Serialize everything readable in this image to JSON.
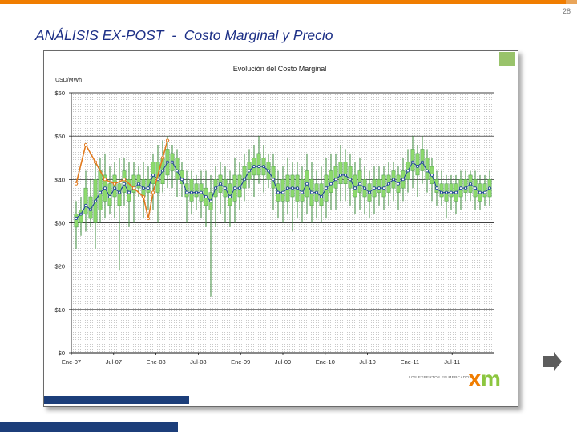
{
  "page": {
    "number": "28",
    "title": "ANÁLISIS EX-POST  -  Costo Marginal y Precio"
  },
  "logo": {
    "tagline": "LOS EXPERTOS EN MERCADOS",
    "mark": "xm",
    "colors": {
      "x": "#f07d00",
      "m": "#8cc63f"
    }
  },
  "icons": {
    "next": "right-arrow-icon"
  },
  "chart_data": {
    "type": "candlestick",
    "title": "Evolución del Costo Marginal",
    "ylabel": "USD/MWh",
    "ylim": [
      0,
      60
    ],
    "yticks": [
      "$0",
      "$10",
      "$20",
      "$30",
      "$40",
      "$50",
      "$60"
    ],
    "xticks": [
      "Ene-07",
      "Jul-07",
      "Ene-08",
      "Jul-08",
      "Ene-09",
      "Jul-09",
      "Ene-10",
      "Jul-10",
      "Ene-11",
      "Jul-11"
    ],
    "grid": true,
    "colors": {
      "box": "#8cd96c",
      "whisker": "#3e8e3e",
      "mean": "#1d3c9e",
      "price": "#e27a1e"
    },
    "candles": [
      {
        "o": 29,
        "c": 32,
        "h": 35,
        "l": 24
      },
      {
        "o": 30,
        "c": 33,
        "h": 36,
        "l": 27
      },
      {
        "o": 32,
        "c": 38,
        "h": 42,
        "l": 28
      },
      {
        "o": 31,
        "c": 36,
        "h": 40,
        "l": 29
      },
      {
        "o": 30,
        "c": 40,
        "h": 44,
        "l": 24
      },
      {
        "o": 33,
        "c": 42,
        "h": 45,
        "l": 30
      },
      {
        "o": 35,
        "c": 41,
        "h": 46,
        "l": 31
      },
      {
        "o": 34,
        "c": 39,
        "h": 43,
        "l": 32
      },
      {
        "o": 36,
        "c": 41,
        "h": 44,
        "l": 31
      },
      {
        "o": 34,
        "c": 39,
        "h": 45,
        "l": 19
      },
      {
        "o": 37,
        "c": 42,
        "h": 45,
        "l": 34
      },
      {
        "o": 35,
        "c": 40,
        "h": 44,
        "l": 29
      },
      {
        "o": 37,
        "c": 41,
        "h": 44,
        "l": 30
      },
      {
        "o": 38,
        "c": 41,
        "h": 43,
        "l": 36
      },
      {
        "o": 36,
        "c": 40,
        "h": 44,
        "l": 31
      },
      {
        "o": 37,
        "c": 40,
        "h": 43,
        "l": 33
      },
      {
        "o": 39,
        "c": 44,
        "h": 46,
        "l": 33
      },
      {
        "o": 37,
        "c": 44,
        "h": 48,
        "l": 30
      },
      {
        "o": 39,
        "c": 45,
        "h": 49,
        "l": 37
      },
      {
        "o": 41,
        "c": 47,
        "h": 50,
        "l": 38
      },
      {
        "o": 42,
        "c": 46,
        "h": 48,
        "l": 38
      },
      {
        "o": 40,
        "c": 45,
        "h": 47,
        "l": 36
      },
      {
        "o": 39,
        "c": 42,
        "h": 44,
        "l": 36
      },
      {
        "o": 36,
        "c": 39,
        "h": 42,
        "l": 30
      },
      {
        "o": 35,
        "c": 40,
        "h": 42,
        "l": 32
      },
      {
        "o": 36,
        "c": 39,
        "h": 41,
        "l": 33
      },
      {
        "o": 35,
        "c": 39,
        "h": 42,
        "l": 31
      },
      {
        "o": 34,
        "c": 38,
        "h": 42,
        "l": 29
      },
      {
        "o": 33,
        "c": 37,
        "h": 41,
        "l": 13
      },
      {
        "o": 36,
        "c": 40,
        "h": 43,
        "l": 29
      },
      {
        "o": 37,
        "c": 41,
        "h": 44,
        "l": 32
      },
      {
        "o": 36,
        "c": 40,
        "h": 43,
        "l": 30
      },
      {
        "o": 34,
        "c": 39,
        "h": 42,
        "l": 29
      },
      {
        "o": 35,
        "c": 41,
        "h": 45,
        "l": 30
      },
      {
        "o": 36,
        "c": 41,
        "h": 44,
        "l": 33
      },
      {
        "o": 38,
        "c": 43,
        "h": 46,
        "l": 35
      },
      {
        "o": 40,
        "c": 44,
        "h": 47,
        "l": 38
      },
      {
        "o": 41,
        "c": 45,
        "h": 48,
        "l": 36
      },
      {
        "o": 41,
        "c": 46,
        "h": 50,
        "l": 39
      },
      {
        "o": 41,
        "c": 45,
        "h": 48,
        "l": 37
      },
      {
        "o": 40,
        "c": 44,
        "h": 46,
        "l": 38
      },
      {
        "o": 38,
        "c": 43,
        "h": 46,
        "l": 33
      },
      {
        "o": 35,
        "c": 39,
        "h": 42,
        "l": 31
      },
      {
        "o": 35,
        "c": 40,
        "h": 43,
        "l": 30
      },
      {
        "o": 35,
        "c": 41,
        "h": 45,
        "l": 32
      },
      {
        "o": 36,
        "c": 41,
        "h": 44,
        "l": 28
      },
      {
        "o": 35,
        "c": 41,
        "h": 44,
        "l": 31
      },
      {
        "o": 35,
        "c": 40,
        "h": 43,
        "l": 30
      },
      {
        "o": 36,
        "c": 42,
        "h": 46,
        "l": 32
      },
      {
        "o": 34,
        "c": 40,
        "h": 44,
        "l": 30
      },
      {
        "o": 35,
        "c": 39,
        "h": 42,
        "l": 31
      },
      {
        "o": 34,
        "c": 39,
        "h": 43,
        "l": 30
      },
      {
        "o": 35,
        "c": 41,
        "h": 45,
        "l": 31
      },
      {
        "o": 37,
        "c": 42,
        "h": 46,
        "l": 33
      },
      {
        "o": 38,
        "c": 43,
        "h": 46,
        "l": 33
      },
      {
        "o": 39,
        "c": 44,
        "h": 48,
        "l": 35
      },
      {
        "o": 39,
        "c": 44,
        "h": 47,
        "l": 35
      },
      {
        "o": 38,
        "c": 43,
        "h": 46,
        "l": 34
      },
      {
        "o": 36,
        "c": 41,
        "h": 44,
        "l": 32
      },
      {
        "o": 37,
        "c": 42,
        "h": 45,
        "l": 33
      },
      {
        "o": 36,
        "c": 40,
        "h": 43,
        "l": 32
      },
      {
        "o": 35,
        "c": 39,
        "h": 42,
        "l": 31
      },
      {
        "o": 36,
        "c": 40,
        "h": 43,
        "l": 32
      },
      {
        "o": 37,
        "c": 40,
        "h": 43,
        "l": 34
      },
      {
        "o": 36,
        "c": 41,
        "h": 43,
        "l": 33
      },
      {
        "o": 37,
        "c": 41,
        "h": 44,
        "l": 34
      },
      {
        "o": 38,
        "c": 42,
        "h": 44,
        "l": 35
      },
      {
        "o": 37,
        "c": 41,
        "h": 43,
        "l": 33
      },
      {
        "o": 38,
        "c": 42,
        "h": 45,
        "l": 35
      },
      {
        "o": 40,
        "c": 44,
        "h": 47,
        "l": 37
      },
      {
        "o": 42,
        "c": 47,
        "h": 50,
        "l": 38
      },
      {
        "o": 41,
        "c": 46,
        "h": 48,
        "l": 36
      },
      {
        "o": 42,
        "c": 47,
        "h": 50,
        "l": 39
      },
      {
        "o": 40,
        "c": 45,
        "h": 47,
        "l": 37
      },
      {
        "o": 39,
        "c": 43,
        "h": 45,
        "l": 35
      },
      {
        "o": 37,
        "c": 40,
        "h": 42,
        "l": 34
      },
      {
        "o": 36,
        "c": 39,
        "h": 42,
        "l": 34
      },
      {
        "o": 35,
        "c": 39,
        "h": 41,
        "l": 31
      },
      {
        "o": 36,
        "c": 39,
        "h": 41,
        "l": 33
      },
      {
        "o": 35,
        "c": 39,
        "h": 41,
        "l": 32
      },
      {
        "o": 36,
        "c": 40,
        "h": 42,
        "l": 33
      },
      {
        "o": 37,
        "c": 40,
        "h": 42,
        "l": 35
      },
      {
        "o": 37,
        "c": 41,
        "h": 42,
        "l": 35
      },
      {
        "o": 36,
        "c": 40,
        "h": 42,
        "l": 33
      },
      {
        "o": 35,
        "c": 39,
        "h": 41,
        "l": 33
      },
      {
        "o": 36,
        "c": 39,
        "h": 41,
        "l": 34
      },
      {
        "o": 36,
        "c": 40,
        "h": 42,
        "l": 34
      }
    ],
    "mean_line": [
      31,
      32,
      34,
      33,
      35,
      37,
      38,
      36,
      38,
      37,
      39,
      37,
      38,
      39,
      38,
      38,
      41,
      40,
      42,
      44,
      44,
      42,
      40,
      37,
      37,
      37,
      37,
      36,
      35,
      38,
      39,
      38,
      36,
      38,
      38,
      40,
      42,
      43,
      43,
      43,
      42,
      40,
      37,
      37,
      38,
      38,
      38,
      37,
      39,
      37,
      37,
      36,
      38,
      39,
      40,
      41,
      41,
      40,
      38,
      39,
      38,
      37,
      38,
      38,
      38,
      39,
      40,
      39,
      40,
      42,
      44,
      43,
      44,
      42,
      41,
      38,
      37,
      37,
      37,
      37,
      38,
      38,
      39,
      38,
      37,
      37,
      38
    ],
    "price_line": [
      {
        "i": 0,
        "v": 39
      },
      {
        "i": 2,
        "v": 48
      },
      {
        "i": 4,
        "v": 44
      },
      {
        "i": 6,
        "v": 40
      },
      {
        "i": 8,
        "v": 39
      },
      {
        "i": 10,
        "v": 40
      },
      {
        "i": 12,
        "v": 38
      },
      {
        "i": 14,
        "v": 36
      },
      {
        "i": 15,
        "v": 31
      },
      {
        "i": 16,
        "v": 37
      },
      {
        "i": 18,
        "v": 45
      },
      {
        "i": 19,
        "v": 49
      }
    ]
  }
}
